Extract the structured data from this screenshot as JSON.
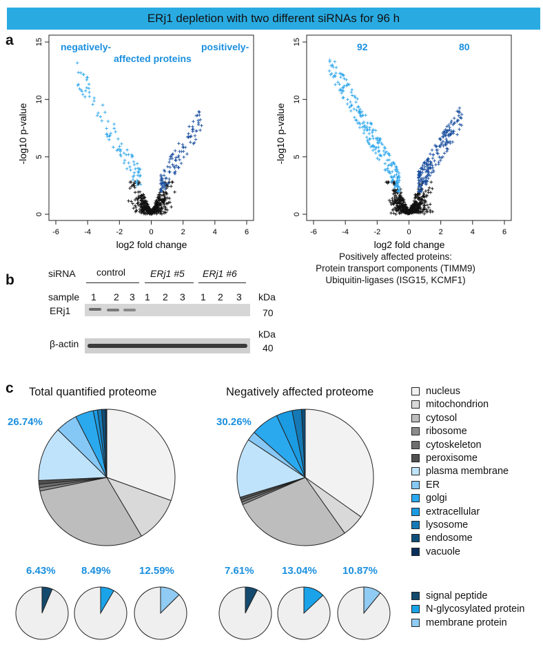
{
  "banner": "ERj1 depletion with two different siRNAs for 96 h",
  "panels": {
    "a": "a",
    "b": "b",
    "c": "c"
  },
  "volcano_left": {
    "xlabel": "log2 fold change",
    "ylabel": "-log10 p-value",
    "xticks": [
      "-6",
      "-4",
      "-2",
      "0",
      "2",
      "4",
      "6"
    ],
    "yticks": [
      "0",
      "5",
      "10",
      "15"
    ],
    "ann_neg": "negatively-",
    "ann_aff": "affected proteins",
    "ann_pos": "positively-"
  },
  "volcano_right": {
    "xlabel": "log2 fold change",
    "ylabel": "-log10 p-value",
    "xticks": [
      "-6",
      "-4",
      "-2",
      "0",
      "2",
      "4",
      "6"
    ],
    "yticks": [
      "0",
      "5",
      "10",
      "15"
    ],
    "count_neg": "92",
    "count_pos": "80",
    "caption1": "Positively affected proteins:",
    "caption2": "Protein transport components (TIMM9)",
    "caption3": "Ubiquitin-ligases (ISG15, KCMF1)"
  },
  "western": {
    "sirna_label": "siRNA",
    "group_control": "control",
    "group_5": "ERj1 #5",
    "group_6": "ERj1 #6",
    "sample_label": "sample",
    "samples": [
      "1",
      "2",
      "3",
      "1",
      "2",
      "3",
      "1",
      "2",
      "3"
    ],
    "kda1": "kDa",
    "kda_val1": "70",
    "kda2": "kDa",
    "kda_val2": "40",
    "band1_label": "ERj1",
    "band2_label": "β-actin"
  },
  "pies": {
    "title_total": "Total quantified proteome",
    "title_neg": "Negatively affected proteome",
    "pct_total": "26.74%",
    "pct_neg": "30.26%",
    "small_pcts": [
      "6.43%",
      "8.49%",
      "12.59%",
      "7.61%",
      "13.04%",
      "10.87%"
    ]
  },
  "legend_main": [
    "nucleus",
    "mitochondrion",
    "cytosol",
    "ribosome",
    "cytoskeleton",
    "peroxisome",
    "plasma membrane",
    "ER",
    "golgi",
    "extracellular",
    "lysosome",
    "endosome",
    "vacuole"
  ],
  "legend_main_colors": [
    "#f2f2f2",
    "#d9d9d9",
    "#bdbdbd",
    "#8c8c8c",
    "#6e6e6e",
    "#505050",
    "#bfe3fb",
    "#86c8f5",
    "#2aa9ef",
    "#1a9be2",
    "#1579b5",
    "#0e4f7a",
    "#0a2f5c"
  ],
  "legend_small": [
    "signal peptide",
    "N-glycosylated protein",
    "membrane protein"
  ],
  "legend_small_colors": [
    "#134a6e",
    "#1aa3e8",
    "#8fcbf2"
  ],
  "chart_data": [
    {
      "type": "pie",
      "title": "Total quantified proteome",
      "labels": [
        "nucleus",
        "mitochondrion",
        "cytosol",
        "ribosome",
        "cytoskeleton",
        "peroxisome",
        "plasma membrane",
        "ER",
        "golgi",
        "extracellular",
        "lysosome",
        "endosome",
        "vacuole"
      ],
      "values": [
        30.5,
        11.0,
        30.3,
        0.8,
        0.8,
        0.9,
        13.0,
        5.2,
        4.3,
        1.0,
        1.0,
        0.9,
        0.3
      ]
    },
    {
      "type": "pie",
      "title": "Negatively affected proteome",
      "labels": [
        "nucleus",
        "mitochondrion",
        "cytosol",
        "ribosome",
        "cytoskeleton",
        "peroxisome",
        "plasma membrane",
        "ER",
        "golgi",
        "extracellular",
        "lysosome",
        "endosome",
        "vacuole"
      ],
      "values": [
        34.8,
        5.4,
        28.3,
        0.6,
        0.6,
        0.6,
        14.0,
        2.2,
        6.6,
        3.8,
        2.2,
        0.9,
        0.0
      ]
    },
    {
      "type": "pie",
      "title": "signal peptide (total)",
      "labels": [
        "signal peptide",
        "other"
      ],
      "values": [
        6.43,
        93.57
      ]
    },
    {
      "type": "pie",
      "title": "N-glycosylated protein (total)",
      "labels": [
        "N-glycosylated protein",
        "other"
      ],
      "values": [
        8.49,
        91.51
      ]
    },
    {
      "type": "pie",
      "title": "membrane protein (total)",
      "labels": [
        "membrane protein",
        "other"
      ],
      "values": [
        12.59,
        87.41
      ]
    },
    {
      "type": "pie",
      "title": "signal peptide (negative)",
      "labels": [
        "signal peptide",
        "other"
      ],
      "values": [
        7.61,
        92.39
      ]
    },
    {
      "type": "pie",
      "title": "N-glycosylated protein (negative)",
      "labels": [
        "N-glycosylated protein",
        "other"
      ],
      "values": [
        13.04,
        86.96
      ]
    },
    {
      "type": "pie",
      "title": "membrane protein (negative)",
      "labels": [
        "membrane protein",
        "other"
      ],
      "values": [
        10.87,
        89.13
      ]
    }
  ]
}
